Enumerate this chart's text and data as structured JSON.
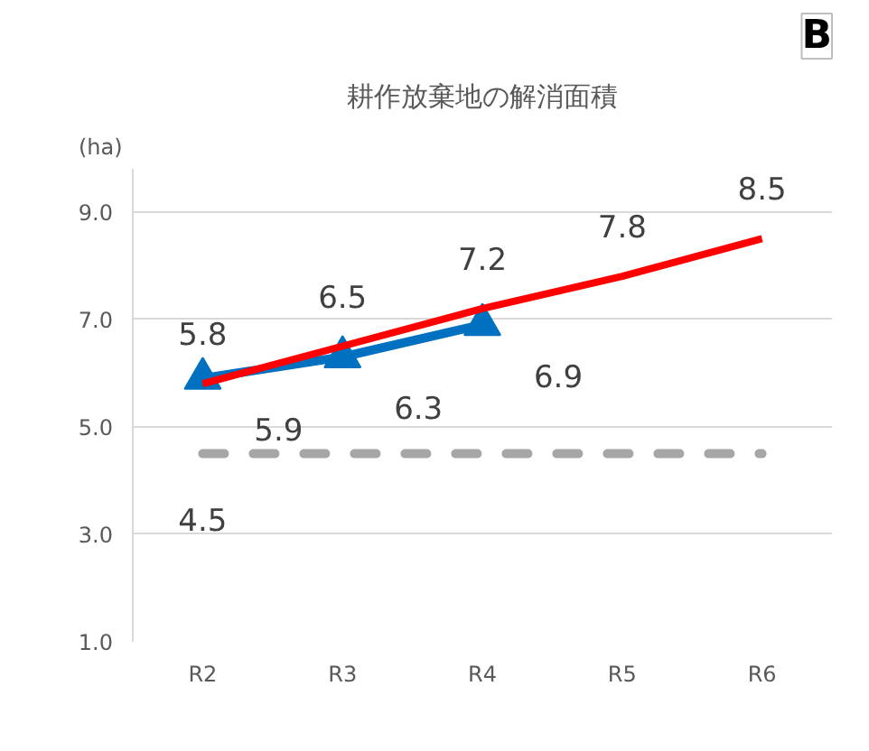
{
  "chart_data": {
    "type": "line",
    "title": "耕作放棄地の解消面積",
    "ylabel": "(ha)",
    "categories": [
      "R2",
      "R3",
      "R4",
      "R5",
      "R6"
    ],
    "series": [
      {
        "color": "#ff0000",
        "values": [
          5.8,
          6.5,
          7.2,
          7.8,
          8.5
        ],
        "marker": "none",
        "line_style": "solid",
        "value_labels": [
          "5.8",
          "6.5",
          "7.2",
          "7.8",
          "8.5"
        ]
      },
      {
        "color": "#0070c0",
        "values": [
          5.9,
          6.3,
          6.9,
          null,
          null
        ],
        "marker": "triangle",
        "line_style": "solid",
        "value_labels": [
          "5.9",
          "6.3",
          "6.9",
          null,
          null
        ]
      },
      {
        "color": "#a6a6a6",
        "values": [
          4.5,
          4.5,
          4.5,
          4.5,
          4.5
        ],
        "marker": "none",
        "line_style": "dashed",
        "value_labels": [
          "4.5",
          null,
          null,
          null,
          null
        ]
      }
    ],
    "ylim": [
      1.0,
      9.8
    ],
    "yticks": [
      {
        "value": 1,
        "label": "1.0"
      },
      {
        "value": 3,
        "label": "3.0"
      },
      {
        "value": 5,
        "label": "5.0"
      },
      {
        "value": 7,
        "label": "7.0"
      },
      {
        "value": 9,
        "label": "9.0"
      }
    ],
    "grid": "y",
    "annotations": [
      "B"
    ]
  }
}
